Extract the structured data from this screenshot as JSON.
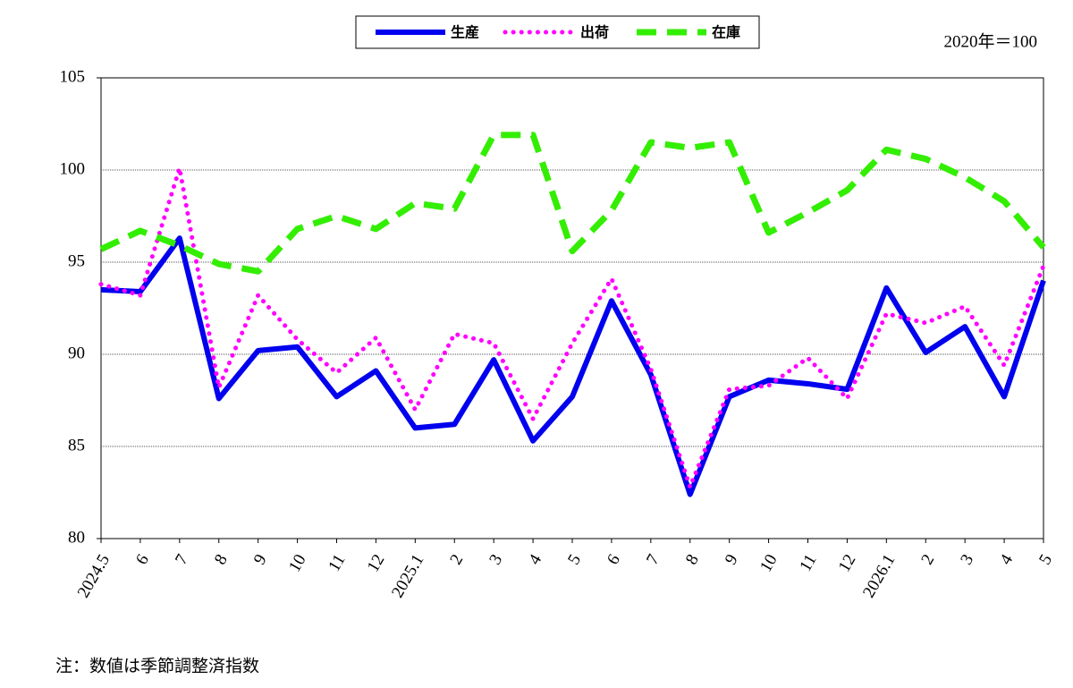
{
  "chart_data": {
    "type": "line",
    "unit_label": "2020年＝100",
    "note": "注：数値は季節調整済指数",
    "categories": [
      "2024.5",
      "6",
      "7",
      "8",
      "9",
      "10",
      "11",
      "12",
      "2025.1",
      "2",
      "3",
      "4",
      "5",
      "6",
      "7",
      "8",
      "9",
      "10",
      "11",
      "12",
      "2026.1",
      "2",
      "3",
      "4",
      "5"
    ],
    "series": [
      {
        "name": "生産",
        "color": "#0000ee",
        "style": "solid",
        "values": [
          93.5,
          93.4,
          96.3,
          87.6,
          90.2,
          90.4,
          87.7,
          89.1,
          86.0,
          86.2,
          89.7,
          85.3,
          87.7,
          92.9,
          88.9,
          82.4,
          87.7,
          88.6,
          88.4,
          88.1,
          93.6,
          90.1,
          91.5,
          87.7,
          94.0
        ]
      },
      {
        "name": "出荷",
        "color": "#ff00ff",
        "style": "dotted",
        "values": [
          93.8,
          93.2,
          100.1,
          88.2,
          93.2,
          90.8,
          89.0,
          90.9,
          87.0,
          91.1,
          90.6,
          86.5,
          90.6,
          94.1,
          89.2,
          82.8,
          88.1,
          88.3,
          89.8,
          87.6,
          92.2,
          91.7,
          92.6,
          89.4,
          94.8
        ]
      },
      {
        "name": "在庫",
        "color": "#33ee00",
        "style": "dashed",
        "values": [
          95.7,
          96.7,
          95.9,
          94.9,
          94.5,
          96.8,
          97.5,
          96.8,
          98.2,
          97.9,
          101.9,
          101.9,
          95.6,
          97.8,
          101.5,
          101.2,
          101.5,
          96.6,
          97.7,
          98.9,
          101.1,
          100.6,
          99.6,
          98.3,
          95.8
        ]
      }
    ],
    "ylim": [
      80,
      105
    ],
    "yticks": [
      80,
      85,
      90,
      95,
      100,
      105
    ],
    "grid": true,
    "legend": "top"
  }
}
